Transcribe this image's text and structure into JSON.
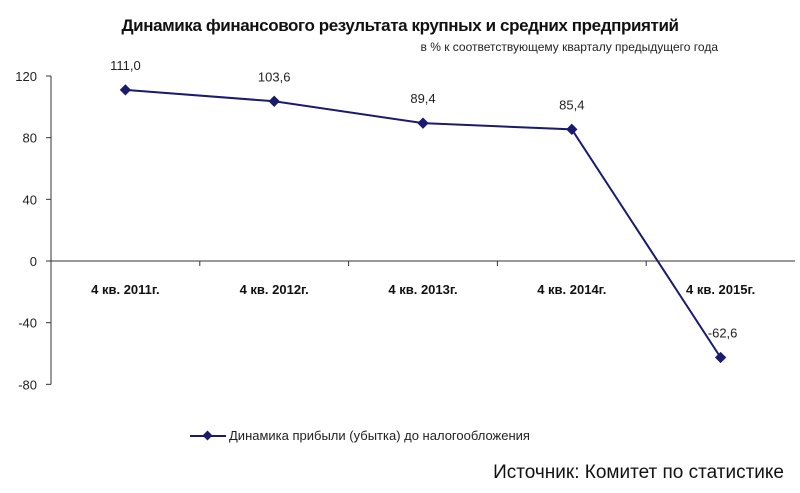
{
  "header": {
    "title": "Динамика финансового результата крупных и средних предприятий",
    "subtitle": "в % к соответствующему кварталу предыдущего года"
  },
  "legend": {
    "series_label": "Динамика прибыли (убытка) до налогообложения",
    "color": "#1a1a6e"
  },
  "footer": {
    "source": "Источник: Комитет по статистике"
  },
  "chart_data": {
    "type": "line",
    "title": "Динамика финансового результата крупных и средних предприятий",
    "subtitle": "в % к соответствующему кварталу предыдущего года",
    "categories": [
      "4 кв. 2011г.",
      "4 кв. 2012г.",
      "4 кв. 2013г.",
      "4 кв. 2014г.",
      "4 кв. 2015г."
    ],
    "series": [
      {
        "name": "Динамика прибыли (убытка) до налогообложения",
        "values": [
          111.0,
          103.6,
          89.4,
          85.4,
          -62.6
        ],
        "labels": [
          "111,0",
          "103,6",
          "89,4",
          "85,4",
          "-62,6"
        ],
        "color": "#1a1a6e",
        "marker": "diamond"
      }
    ],
    "xlabel": "",
    "ylabel": "",
    "ylim": [
      -80,
      120
    ],
    "yticks": [
      120,
      80,
      40,
      0,
      -40,
      -80
    ],
    "ytick_labels": [
      "120",
      "80",
      "40",
      "0",
      "-40",
      "-80"
    ],
    "grid": false,
    "legend_position": "bottom"
  }
}
